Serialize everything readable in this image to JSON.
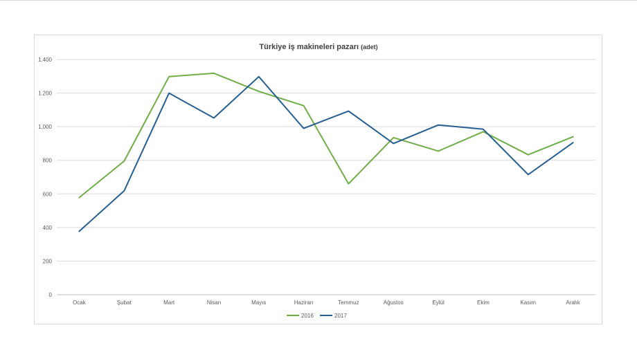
{
  "chart_data": {
    "type": "line",
    "title": "Türkiye iş makineleri pazarı",
    "title_unit": "(adet)",
    "xlabel": "",
    "ylabel": "",
    "categories": [
      "Ocak",
      "Şubat",
      "Mart",
      "Nisan",
      "Mayıs",
      "Haziran",
      "Temmuz",
      "Ağustos",
      "Eylül",
      "Ekim",
      "Kasım",
      "Aralık"
    ],
    "ylim": [
      0,
      1400
    ],
    "yticks": [
      0,
      200,
      400,
      600,
      800,
      1000,
      1200,
      1400
    ],
    "ytick_labels": [
      "0",
      "200",
      "400",
      "600",
      "800",
      "1.000",
      "1.200",
      "1.400"
    ],
    "grid": true,
    "legend_position": "bottom",
    "series": [
      {
        "name": "2016",
        "color": "#70ad47",
        "values": [
          578,
          795,
          1298,
          1318,
          1210,
          1125,
          660,
          935,
          855,
          970,
          833,
          940
        ]
      },
      {
        "name": "2017",
        "color": "#255e91",
        "values": [
          377,
          618,
          1200,
          1052,
          1298,
          990,
          1093,
          900,
          1010,
          985,
          715,
          905
        ]
      }
    ]
  }
}
